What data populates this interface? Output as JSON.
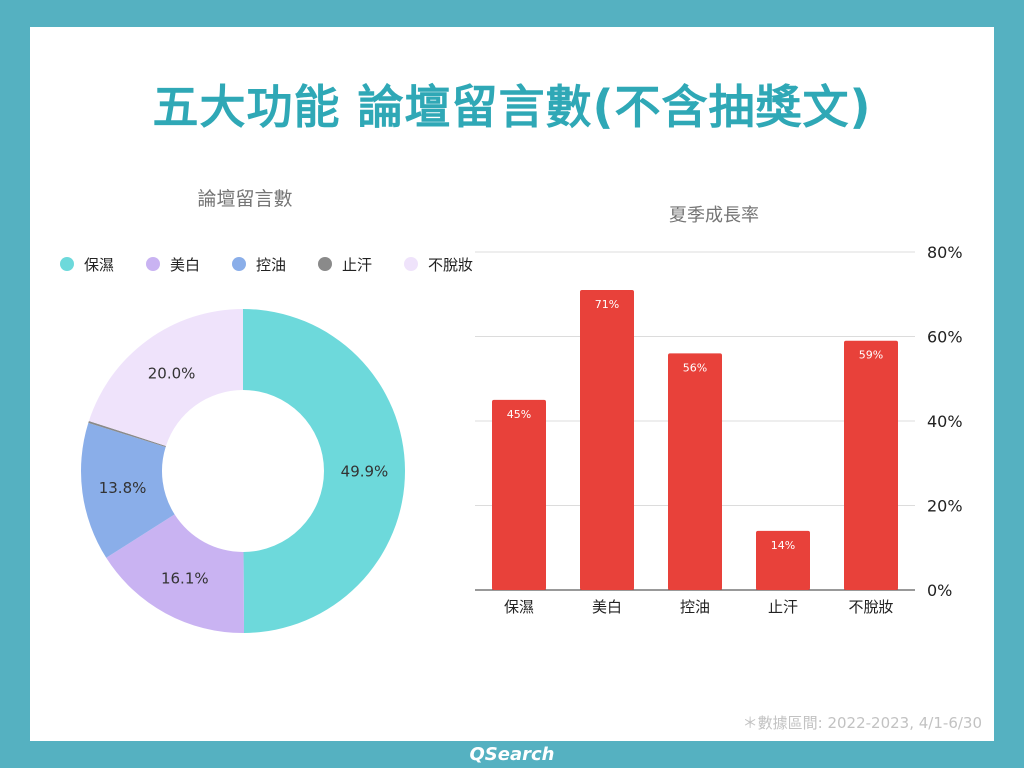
{
  "title": "五大功能 論壇留言數(不含抽獎文)",
  "footnote": "＊數據區間: 2022-2023, 4/1-6/30",
  "brand": "QSearch",
  "chart_data": [
    {
      "type": "pie",
      "subtype": "donut",
      "title": "論壇留言數",
      "legend_position": "top",
      "categories": [
        "保濕",
        "美白",
        "控油",
        "止汗",
        "不脫妝"
      ],
      "values": [
        49.9,
        16.1,
        13.8,
        0.2,
        20.0
      ],
      "labels": [
        "49.9%",
        "16.1%",
        "13.8%",
        "",
        "20.0%"
      ],
      "colors": [
        "#6dd9db",
        "#c9b3f2",
        "#8aaee9",
        "#8a8a8a",
        "#efe3fb"
      ]
    },
    {
      "type": "bar",
      "title": "夏季成長率",
      "categories": [
        "保濕",
        "美白",
        "控油",
        "止汗",
        "不脫妝"
      ],
      "values": [
        45,
        71,
        56,
        14,
        59
      ],
      "labels": [
        "45%",
        "71%",
        "56%",
        "14%",
        "59%"
      ],
      "y_axis_position": "right",
      "ylim": [
        0,
        80
      ],
      "yticks": [
        "0%",
        "20%",
        "40%",
        "60%",
        "80%"
      ],
      "ytick_values": [
        0,
        20,
        40,
        60,
        80
      ],
      "grid": true,
      "color": "#e8413a"
    }
  ]
}
